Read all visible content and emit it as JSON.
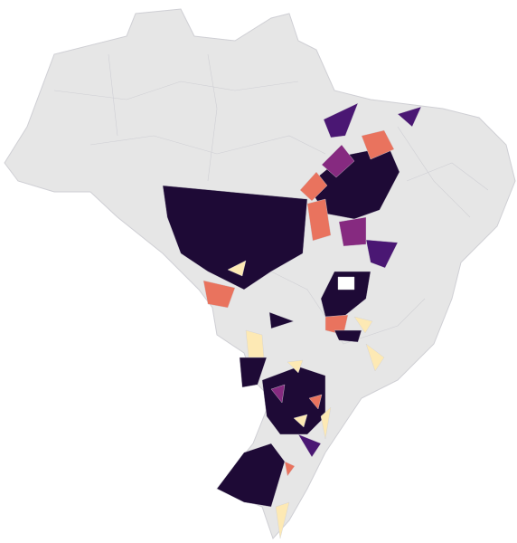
{
  "map": {
    "land_color": "#e6e6e6",
    "border_color": "#cfcfd4",
    "highlight_colors": [
      "#1e0a36",
      "#4a1773",
      "#862a80",
      "#e9735e",
      "#fde9b4"
    ]
  }
}
